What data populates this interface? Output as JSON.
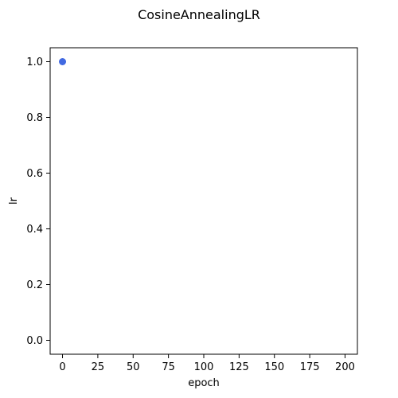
{
  "chart_data": {
    "type": "scatter",
    "title": "CosineAnnealingLR",
    "xlabel": "epoch",
    "ylabel": "lr",
    "xlim": [
      -8.75,
      208.75
    ],
    "ylim": [
      -0.05,
      1.05
    ],
    "xticks": [
      0,
      25,
      50,
      75,
      100,
      125,
      150,
      175,
      200
    ],
    "xtick_labels": [
      "0",
      "25",
      "50",
      "75",
      "100",
      "125",
      "150",
      "175",
      "200"
    ],
    "yticks": [
      0.0,
      0.2,
      0.4,
      0.6,
      0.8,
      1.0
    ],
    "ytick_labels": [
      "0.0",
      "0.2",
      "0.4",
      "0.6",
      "0.8",
      "1.0"
    ],
    "grid": false,
    "points": [
      {
        "x": 0,
        "y": 1.0
      }
    ],
    "marker_color": "#4169e1"
  }
}
